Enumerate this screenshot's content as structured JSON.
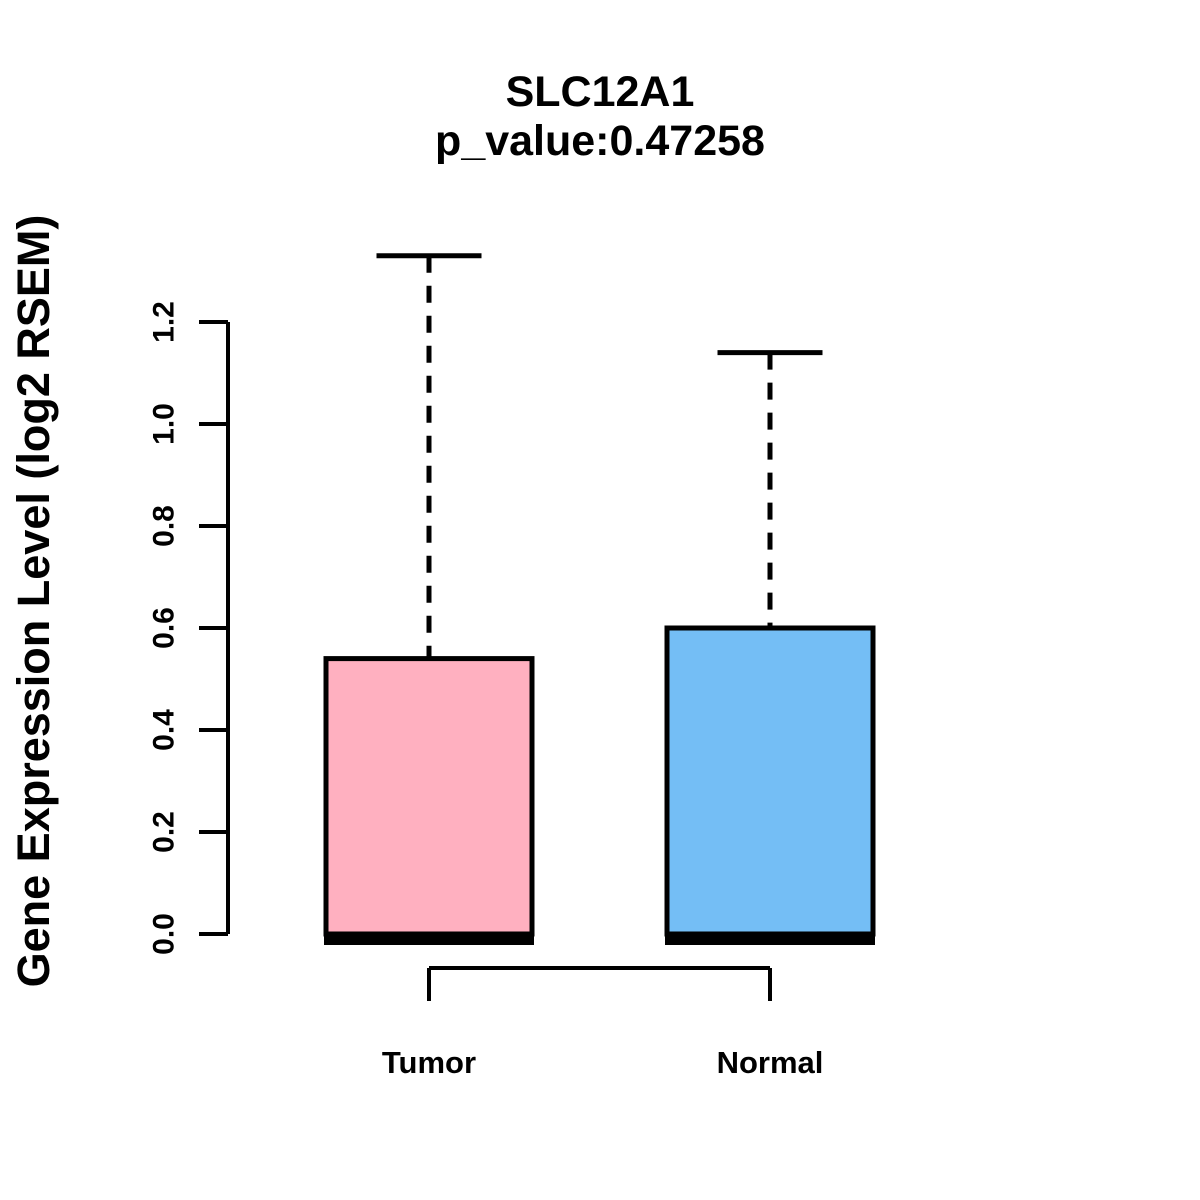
{
  "chart_data": {
    "type": "boxplot",
    "title": "SLC12A1",
    "subtitle": "p_value:0.47258",
    "ylabel": "Gene Expression Level (log2 RSEM)",
    "ylim": [
      0.0,
      1.35
    ],
    "yticks": [
      0.0,
      0.2,
      0.4,
      0.6,
      0.8,
      1.0,
      1.2
    ],
    "grid": false,
    "legend": "none",
    "categories": [
      "Tumor",
      "Normal"
    ],
    "series": [
      {
        "name": "Tumor",
        "fill_color": "#FFB0C0",
        "whisker_low": 0.0,
        "q1": 0.0,
        "median": 0.0,
        "q3": 0.54,
        "whisker_high": 1.33
      },
      {
        "name": "Normal",
        "fill_color": "#74BEF5",
        "whisker_low": 0.0,
        "q1": 0.0,
        "median": 0.0,
        "q3": 0.6,
        "whisker_high": 1.14
      }
    ]
  },
  "colors": {
    "background": "#FFFFFF",
    "line": "#000000",
    "text": "#000000"
  }
}
